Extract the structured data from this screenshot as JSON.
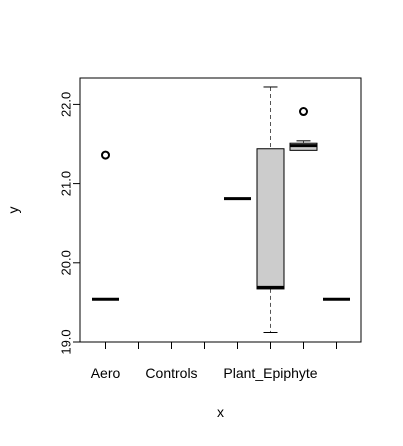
{
  "chart_data": {
    "type": "boxplot",
    "xlabel": "x",
    "ylabel": "y",
    "ylim": [
      19.0,
      22.3
    ],
    "y_ticks": [
      19.0,
      20.0,
      21.0,
      22.0
    ],
    "y_tick_labels": [
      "19.0",
      "20.0",
      "21.0",
      "22.0"
    ],
    "categories_count": 8,
    "x_tick_labels": [
      {
        "category_index": 1,
        "label": "Aero"
      },
      {
        "category_index": 3,
        "label": "Controls"
      },
      {
        "category_index": 6,
        "label": "Plant_Epiphyte"
      }
    ],
    "boxes": [
      {
        "category_index": 1,
        "q1": 19.54,
        "median": 19.54,
        "q3": 19.54,
        "whisker_low": 19.54,
        "whisker_high": 19.54,
        "outliers": [
          21.36
        ]
      },
      {
        "category_index": 5,
        "q1": 20.81,
        "median": 20.81,
        "q3": 20.81,
        "whisker_low": 20.81,
        "whisker_high": 20.81,
        "outliers": []
      },
      {
        "category_index": 6,
        "q1": 19.67,
        "median": 19.69,
        "q3": 21.44,
        "whisker_low": 19.12,
        "whisker_high": 22.22,
        "outliers": []
      },
      {
        "category_index": 7,
        "q1": 21.42,
        "median": 21.48,
        "q3": 21.51,
        "whisker_low": 21.42,
        "whisker_high": 21.54,
        "outliers": [
          21.91
        ]
      },
      {
        "category_index": 8,
        "q1": 19.54,
        "median": 19.54,
        "q3": 19.54,
        "whisker_low": 19.54,
        "whisker_high": 19.54,
        "outliers": []
      }
    ],
    "colors": {
      "box_fill": "#cccccc",
      "stroke": "#000000",
      "whisker": "#555555",
      "background": "#ffffff"
    },
    "grid": false,
    "legend": "none"
  }
}
